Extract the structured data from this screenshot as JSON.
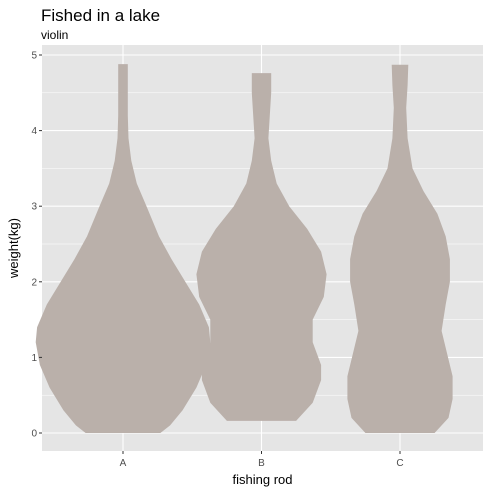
{
  "chart_data": {
    "type": "violin",
    "title": "Fished in a lake",
    "subtitle": "violin",
    "xlabel": "fishing rod",
    "ylabel": "weight(kg)",
    "categories": [
      "A",
      "B",
      "C"
    ],
    "ylim": [
      -0.15,
      5.1
    ],
    "yticks": [
      0,
      1,
      2,
      3,
      4,
      5
    ],
    "grid": true,
    "fill_color": "#BAB0AA",
    "panel_color": "#E5E5E5",
    "gridline_color": "#FFFFFF",
    "violins": [
      {
        "category": "A",
        "range": [
          0,
          4.88
        ],
        "profile": [
          {
            "y": 0.0,
            "half_width": 0.27
          },
          {
            "y": 0.1,
            "half_width": 0.34
          },
          {
            "y": 0.3,
            "half_width": 0.43
          },
          {
            "y": 0.6,
            "half_width": 0.53
          },
          {
            "y": 0.9,
            "half_width": 0.6
          },
          {
            "y": 1.2,
            "half_width": 0.63
          },
          {
            "y": 1.4,
            "half_width": 0.62
          },
          {
            "y": 1.7,
            "half_width": 0.55
          },
          {
            "y": 2.0,
            "half_width": 0.45
          },
          {
            "y": 2.3,
            "half_width": 0.35
          },
          {
            "y": 2.6,
            "half_width": 0.26
          },
          {
            "y": 3.0,
            "half_width": 0.17
          },
          {
            "y": 3.3,
            "half_width": 0.1
          },
          {
            "y": 3.6,
            "half_width": 0.06
          },
          {
            "y": 3.9,
            "half_width": 0.04
          },
          {
            "y": 4.2,
            "half_width": 0.035
          },
          {
            "y": 4.6,
            "half_width": 0.035
          },
          {
            "y": 4.88,
            "half_width": 0.035
          }
        ]
      },
      {
        "category": "B",
        "range": [
          0.16,
          4.76
        ],
        "profile": [
          {
            "y": 0.16,
            "half_width": 0.25
          },
          {
            "y": 0.4,
            "half_width": 0.37
          },
          {
            "y": 0.7,
            "half_width": 0.43
          },
          {
            "y": 0.9,
            "half_width": 0.43
          },
          {
            "y": 1.2,
            "half_width": 0.37
          },
          {
            "y": 1.5,
            "half_width": 0.37
          },
          {
            "y": 1.8,
            "half_width": 0.45
          },
          {
            "y": 2.1,
            "half_width": 0.47
          },
          {
            "y": 2.4,
            "half_width": 0.43
          },
          {
            "y": 2.7,
            "half_width": 0.33
          },
          {
            "y": 3.0,
            "half_width": 0.2
          },
          {
            "y": 3.3,
            "half_width": 0.11
          },
          {
            "y": 3.6,
            "half_width": 0.07
          },
          {
            "y": 3.9,
            "half_width": 0.05
          },
          {
            "y": 4.2,
            "half_width": 0.06
          },
          {
            "y": 4.5,
            "half_width": 0.07
          },
          {
            "y": 4.76,
            "half_width": 0.07
          }
        ]
      },
      {
        "category": "C",
        "range": [
          0,
          4.87
        ],
        "profile": [
          {
            "y": 0.0,
            "half_width": 0.25
          },
          {
            "y": 0.2,
            "half_width": 0.35
          },
          {
            "y": 0.45,
            "half_width": 0.38
          },
          {
            "y": 0.75,
            "half_width": 0.38
          },
          {
            "y": 1.05,
            "half_width": 0.34
          },
          {
            "y": 1.35,
            "half_width": 0.3
          },
          {
            "y": 1.7,
            "half_width": 0.33
          },
          {
            "y": 2.0,
            "half_width": 0.36
          },
          {
            "y": 2.3,
            "half_width": 0.36
          },
          {
            "y": 2.6,
            "half_width": 0.33
          },
          {
            "y": 2.9,
            "half_width": 0.27
          },
          {
            "y": 3.2,
            "half_width": 0.17
          },
          {
            "y": 3.5,
            "half_width": 0.09
          },
          {
            "y": 3.9,
            "half_width": 0.055
          },
          {
            "y": 4.3,
            "half_width": 0.045
          },
          {
            "y": 4.6,
            "half_width": 0.055
          },
          {
            "y": 4.87,
            "half_width": 0.06
          }
        ]
      }
    ]
  }
}
